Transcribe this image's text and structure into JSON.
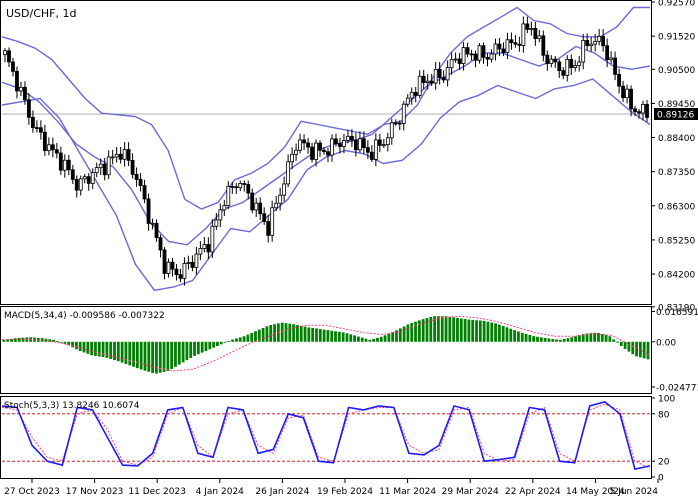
{
  "chart_data": [
    {
      "type": "candlestick",
      "title": "USD/CHF, 1d",
      "current_price": "0.89126",
      "ylim": [
        0.8334,
        0.9257
      ],
      "yticks": [
        "0.92570",
        "0.91520",
        "0.90500",
        "0.89450",
        "0.88400",
        "0.87350",
        "0.86300",
        "0.85250",
        "0.84200",
        "0.83190"
      ],
      "xlabels": [
        "27 Oct 2023",
        "17 Nov 2023",
        "11 Dec 2023",
        "4 Jan 2024",
        "26 Jan 2024",
        "19 Feb 2024",
        "11 Mar 2024",
        "29 Mar 2024",
        "22 Apr 2024",
        "14 May 2024",
        "5 Jun 2024"
      ],
      "close_path": [
        0.9095,
        0.899,
        0.887,
        0.881,
        0.876,
        0.869,
        0.873,
        0.876,
        0.88,
        0.872,
        0.858,
        0.844,
        0.842,
        0.847,
        0.852,
        0.865,
        0.871,
        0.864,
        0.856,
        0.869,
        0.883,
        0.88,
        0.88,
        0.883,
        0.883,
        0.879,
        0.883,
        0.89,
        0.899,
        0.902,
        0.903,
        0.909,
        0.91,
        0.909,
        0.912,
        0.913,
        0.919,
        0.909,
        0.905,
        0.906,
        0.914,
        0.913,
        0.901,
        0.893,
        0.8913
      ],
      "bb_upper": [
        0.915,
        0.9135,
        0.9115,
        0.908,
        0.902,
        0.896,
        0.8915,
        0.891,
        0.8905,
        0.888,
        0.88,
        0.865,
        0.862,
        0.864,
        0.871,
        0.873,
        0.876,
        0.881,
        0.889,
        0.888,
        0.887,
        0.886,
        0.885,
        0.888,
        0.889,
        0.894,
        0.903,
        0.91,
        0.915,
        0.918,
        0.921,
        0.924,
        0.92,
        0.919,
        0.916,
        0.915,
        0.915,
        0.918,
        0.924,
        0.924
      ],
      "bb_middle": [
        0.901,
        0.899,
        0.895,
        0.889,
        0.882,
        0.878,
        0.875,
        0.868,
        0.858,
        0.852,
        0.851,
        0.856,
        0.862,
        0.864,
        0.868,
        0.872,
        0.876,
        0.88,
        0.882,
        0.883,
        0.885,
        0.89,
        0.895,
        0.9,
        0.903,
        0.906,
        0.91,
        0.91,
        0.908,
        0.906,
        0.908,
        0.912,
        0.91,
        0.906,
        0.905,
        0.906
      ],
      "bb_lower": [
        0.894,
        0.895,
        0.896,
        0.89,
        0.88,
        0.87,
        0.86,
        0.845,
        0.837,
        0.838,
        0.84,
        0.848,
        0.856,
        0.855,
        0.86,
        0.865,
        0.874,
        0.878,
        0.88,
        0.879,
        0.876,
        0.877,
        0.882,
        0.89,
        0.895,
        0.897,
        0.9,
        0.898,
        0.896,
        0.899,
        0.9,
        0.902,
        0.897,
        0.892,
        0.888
      ]
    },
    {
      "type": "bar",
      "title": "MACD(5,34,4) -0.009586 -0.007322",
      "ylim": [
        -0.0275,
        0.0185
      ],
      "yticks": [
        "0.016591",
        "0.00",
        "-0.024771"
      ],
      "values": [
        0.001,
        0.002,
        0.0025,
        0.002,
        0.001,
        -0.0015,
        -0.005,
        -0.0075,
        -0.0085,
        -0.0105,
        -0.013,
        -0.0155,
        -0.0175,
        -0.016,
        -0.012,
        -0.008,
        -0.005,
        -0.002,
        0.001,
        0.003,
        0.006,
        0.009,
        0.0105,
        0.0095,
        0.008,
        0.007,
        0.006,
        0.005,
        0.003,
        0.001,
        0.003,
        0.006,
        0.0095,
        0.012,
        0.014,
        0.014,
        0.013,
        0.012,
        0.0115,
        0.01,
        0.0075,
        0.005,
        0.003,
        0.002,
        0.001,
        0.0025,
        0.0045,
        0.005,
        0.003,
        -0.003,
        -0.0078,
        -0.0096
      ],
      "signal": [
        0.0012,
        0.0015,
        0.001,
        -0.0005,
        -0.003,
        -0.006,
        -0.0085,
        -0.011,
        -0.014,
        -0.016,
        -0.015,
        -0.011,
        -0.006,
        -0.001,
        0.003,
        0.007,
        0.009,
        0.009,
        0.007,
        0.005,
        0.004,
        0.006,
        0.01,
        0.013,
        0.014,
        0.013,
        0.011,
        0.008,
        0.005,
        0.003,
        0.003,
        0.0045,
        0.0035,
        -0.002,
        -0.0073
      ]
    },
    {
      "type": "line",
      "title": "Stoch(5,3,3) 13.8246 10.6074",
      "ylim": [
        0,
        100
      ],
      "yticks": [
        "100",
        "80",
        "20",
        "0"
      ],
      "levels": [
        80,
        20
      ],
      "series": [
        {
          "values": [
            90,
            88,
            40,
            20,
            15,
            88,
            85,
            50,
            15,
            14,
            30,
            85,
            88,
            30,
            25,
            88,
            85,
            30,
            35,
            80,
            75,
            20,
            18,
            88,
            85,
            90,
            88,
            30,
            28,
            40,
            90,
            85,
            20,
            22,
            25,
            88,
            85,
            20,
            18,
            90,
            95,
            80,
            10,
            14
          ],
          "color": "#1a1aff"
        },
        {
          "values": [
            88,
            85,
            50,
            25,
            20,
            80,
            85,
            60,
            20,
            15,
            25,
            80,
            88,
            40,
            25,
            80,
            85,
            40,
            30,
            75,
            78,
            25,
            20,
            80,
            85,
            88,
            88,
            40,
            30,
            35,
            85,
            88,
            30,
            20,
            22,
            80,
            88,
            30,
            20,
            85,
            92,
            85,
            20,
            11
          ],
          "color": "#ff4080"
        }
      ]
    }
  ],
  "colors": {
    "bull": "#000000",
    "bear": "#000000",
    "bands": "#6a6ad8",
    "macd_hist": "#008000",
    "macd_signal": "#ff4080",
    "stoch_main": "#1a1aff",
    "stoch_signal": "#ff4080",
    "level_line": "#cc0000",
    "price_line": "#b0b0b0",
    "frame": "#000000"
  }
}
